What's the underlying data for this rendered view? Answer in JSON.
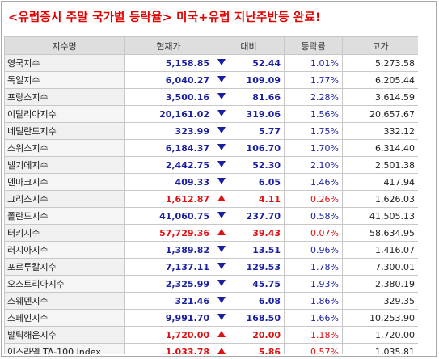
{
  "title": "<유럽증시 주말 국가별 등락율>  미국+유럽 지난주반등 완료!",
  "columns": [
    "지수명",
    "현재가",
    "대비",
    "등락률",
    "고가"
  ],
  "colors": {
    "up": "#dd1111",
    "down": "#1a1fa0"
  },
  "rows": [
    {
      "name": "영국지수",
      "price": "5,158.85",
      "direction": "down",
      "change": "52.44",
      "rate": "1.01%",
      "high": "5,273.58"
    },
    {
      "name": "독일지수",
      "price": "6,040.27",
      "direction": "down",
      "change": "109.09",
      "rate": "1.77%",
      "high": "6,205.44"
    },
    {
      "name": "프랑스지수",
      "price": "3,500.16",
      "direction": "down",
      "change": "81.66",
      "rate": "2.28%",
      "high": "3,614.59"
    },
    {
      "name": "이탈리아지수",
      "price": "20,161.02",
      "direction": "down",
      "change": "319.06",
      "rate": "1.56%",
      "high": "20,657.67"
    },
    {
      "name": "네덜란드지수",
      "price": "323.99",
      "direction": "down",
      "change": "5.77",
      "rate": "1.75%",
      "high": "332.12"
    },
    {
      "name": "스위스지수",
      "price": "6,184.37",
      "direction": "down",
      "change": "106.70",
      "rate": "1.70%",
      "high": "6,314.40"
    },
    {
      "name": "벨기에지수",
      "price": "2,442.75",
      "direction": "down",
      "change": "52.30",
      "rate": "2.10%",
      "high": "2,501.38"
    },
    {
      "name": "덴마크지수",
      "price": "409.33",
      "direction": "down",
      "change": "6.05",
      "rate": "1.46%",
      "high": "417.94"
    },
    {
      "name": "그리스지수",
      "price": "1,612.87",
      "direction": "up",
      "change": "4.11",
      "rate": "0.26%",
      "high": "1,626.03"
    },
    {
      "name": "폴란드지수",
      "price": "41,060.75",
      "direction": "down",
      "change": "237.70",
      "rate": "0.58%",
      "high": "41,505.13"
    },
    {
      "name": "터키지수",
      "price": "57,729.36",
      "direction": "up",
      "change": "39.43",
      "rate": "0.07%",
      "high": "58,634.95"
    },
    {
      "name": "러시아지수",
      "price": "1,389.82",
      "direction": "down",
      "change": "13.51",
      "rate": "0.96%",
      "high": "1,416.07"
    },
    {
      "name": "포르투칼지수",
      "price": "7,137.11",
      "direction": "down",
      "change": "129.53",
      "rate": "1.78%",
      "high": "7,300.01"
    },
    {
      "name": "오스트리아지수",
      "price": "2,325.99",
      "direction": "down",
      "change": "45.75",
      "rate": "1.93%",
      "high": "2,380.19"
    },
    {
      "name": "스웨덴지수",
      "price": "321.46",
      "direction": "down",
      "change": "6.08",
      "rate": "1.86%",
      "high": "329.35"
    },
    {
      "name": "스페인지수",
      "price": "9,991.70",
      "direction": "down",
      "change": "168.50",
      "rate": "1.66%",
      "high": "10,253.90"
    },
    {
      "name": "발틱해운지수",
      "price": "1,720.00",
      "direction": "up",
      "change": "20.00",
      "rate": "1.18%",
      "high": "1,720.00"
    },
    {
      "name": "이스라엘 TA-100 Index",
      "price": "1,033.78",
      "direction": "up",
      "change": "5.86",
      "rate": "0.57%",
      "high": "1,035.81"
    }
  ]
}
